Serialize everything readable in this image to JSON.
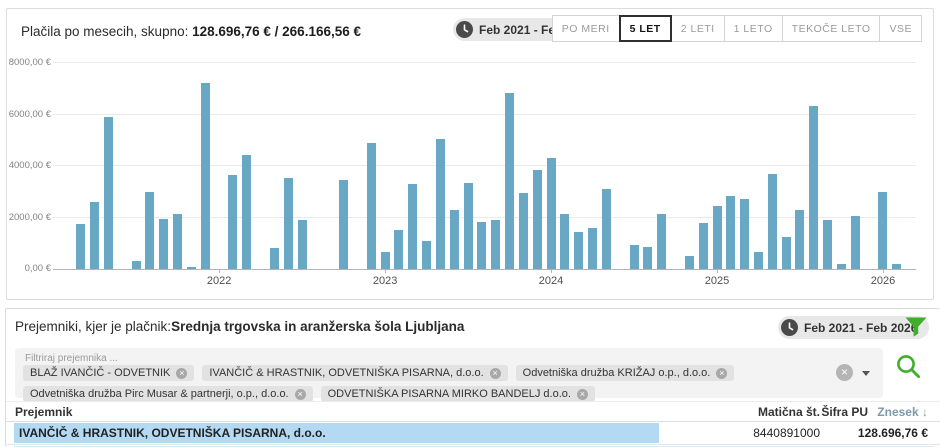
{
  "chart_header": {
    "title_prefix": "Plačila po mesecih, skupno: ",
    "title_amounts": "128.696,76 € / 266.166,56 €",
    "date_range": "Feb 2021 - Feb 2026",
    "periods": [
      {
        "label": "PO MERI",
        "active": false
      },
      {
        "label": "5 LET",
        "active": true
      },
      {
        "label": "2 LETI",
        "active": false
      },
      {
        "label": "1 LETO",
        "active": false
      },
      {
        "label": "TEKOČE LETO",
        "active": false
      },
      {
        "label": "VSE",
        "active": false
      }
    ]
  },
  "chart_data": {
    "type": "bar",
    "title": "Plačila po mesecih",
    "ylim": [
      0,
      8000
    ],
    "grid": true,
    "bar_color": "#68a8c4",
    "ytick_labels": [
      "0,00 €",
      "2000,00 €",
      "4000,00 €",
      "6000,00 €",
      "8000,00 €"
    ],
    "year_labels": [
      "2022",
      "2023",
      "2024",
      "2025",
      "2026"
    ],
    "x": [
      "2021-02",
      "2021-03",
      "2021-04",
      "2021-05",
      "2021-06",
      "2021-07",
      "2021-08",
      "2021-09",
      "2021-10",
      "2021-11",
      "2021-12",
      "2022-01",
      "2022-02",
      "2022-03",
      "2022-04",
      "2022-05",
      "2022-06",
      "2022-07",
      "2022-08",
      "2022-09",
      "2022-10",
      "2022-11",
      "2022-12",
      "2023-01",
      "2023-02",
      "2023-03",
      "2023-04",
      "2023-05",
      "2023-06",
      "2023-07",
      "2023-08",
      "2023-09",
      "2023-10",
      "2023-11",
      "2023-12",
      "2024-01",
      "2024-02",
      "2024-03",
      "2024-04",
      "2024-05",
      "2024-06",
      "2024-07",
      "2024-08",
      "2024-09",
      "2024-10",
      "2024-11",
      "2024-12",
      "2025-01",
      "2025-02",
      "2025-03",
      "2025-04",
      "2025-05",
      "2025-06",
      "2025-07",
      "2025-08",
      "2025-09",
      "2025-10",
      "2025-11",
      "2025-12",
      "2026-01",
      "2026-02"
    ],
    "values": [
      0,
      1760,
      2590,
      5890,
      0,
      320,
      3000,
      1940,
      2120,
      90,
      7210,
      0,
      3660,
      4430,
      0,
      800,
      3540,
      1915,
      0,
      0,
      3470,
      0,
      4890,
      645,
      1530,
      3310,
      1100,
      5060,
      2280,
      3330,
      1825,
      1900,
      6840,
      2940,
      3860,
      4330,
      2120,
      1440,
      1600,
      3100,
      0,
      920,
      840,
      2130,
      0,
      490,
      1770,
      2430,
      2820,
      2720,
      645,
      3690,
      1230,
      2300,
      6350,
      1890,
      180,
      2070,
      0,
      3010,
      180
    ]
  },
  "recipients": {
    "heading_prefix": "Prejemniki, kjer je plačnik:",
    "payer": "Srednja trgovska in aranžerska šola Ljubljana",
    "date_range": "Feb 2021 - Feb 2026",
    "filter_label": "Filtriraj prejemnika ...",
    "filters": [
      "BLAŽ IVANČIČ - ODVETNIK",
      "IVANČIČ & HRASTNIK, ODVETNIŠKA PISARNA, d.o.o.",
      "Odvetniška družba KRIŽAJ o.p., d.o.o.",
      "Odvetniška družba Pirc Musar & partnerji, o.p., d.o.o.",
      "ODVETNIŠKA PISARNA MIRKO BANDELJ d.o.o."
    ]
  },
  "table": {
    "columns": {
      "prejemnik": "Prejemnik",
      "maticna": "Matična št.",
      "sifra_pu": "Šifra PU",
      "znesek": "Znesek"
    },
    "sort_arrow": "↓",
    "rows": [
      {
        "prejemnik": "IVANČIČ & HRASTNIK, ODVETNIŠKA PISARNA, d.o.o.",
        "maticna": "8440891000",
        "sifra_pu": "",
        "znesek": "128.696,76 €",
        "highlighted": true
      }
    ]
  },
  "colors": {
    "bar": "#68a8c4",
    "accent_green": "#3fae2a",
    "row_highlight": "#b4d9f3"
  }
}
